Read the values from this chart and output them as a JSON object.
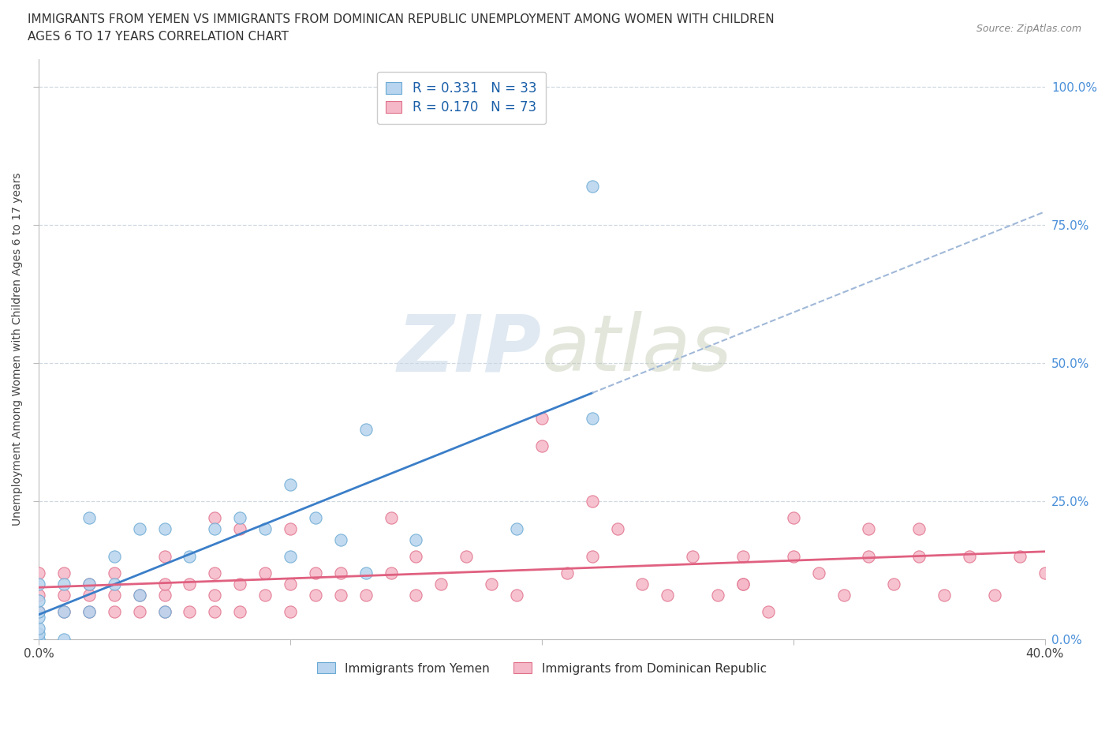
{
  "title_line1": "IMMIGRANTS FROM YEMEN VS IMMIGRANTS FROM DOMINICAN REPUBLIC UNEMPLOYMENT AMONG WOMEN WITH CHILDREN",
  "title_line2": "AGES 6 TO 17 YEARS CORRELATION CHART",
  "source_text": "Source: ZipAtlas.com",
  "ylabel": "Unemployment Among Women with Children Ages 6 to 17 years",
  "xlim": [
    0.0,
    0.4
  ],
  "ylim": [
    0.0,
    1.05
  ],
  "r_yemen": 0.331,
  "n_yemen": 33,
  "r_dr": 0.17,
  "n_dr": 73,
  "color_yemen_fill": "#b8d4ee",
  "color_yemen_edge": "#6aaad4",
  "color_dr_fill": "#f5b8c8",
  "color_dr_edge": "#e0708a",
  "trendline_color_yemen": "#3a7ec8",
  "trendline_color_dr": "#e06080",
  "trendline_dashed_color": "#a0b8d8",
  "watermark_color": "#d0dde8",
  "legend_label_yemen": "Immigrants from Yemen",
  "legend_label_dr": "Immigrants from Dominican Republic",
  "yemen_x": [
    0.0,
    0.0,
    0.0,
    0.0,
    0.0,
    0.0,
    0.0,
    0.01,
    0.01,
    0.01,
    0.02,
    0.02,
    0.02,
    0.03,
    0.03,
    0.04,
    0.04,
    0.05,
    0.05,
    0.06,
    0.07,
    0.08,
    0.09,
    0.1,
    0.1,
    0.11,
    0.12,
    0.13,
    0.13,
    0.15,
    0.19,
    0.22,
    0.22
  ],
  "yemen_y": [
    0.0,
    0.01,
    0.02,
    0.04,
    0.05,
    0.07,
    0.1,
    0.0,
    0.05,
    0.1,
    0.05,
    0.1,
    0.22,
    0.1,
    0.15,
    0.08,
    0.2,
    0.05,
    0.2,
    0.15,
    0.2,
    0.22,
    0.2,
    0.15,
    0.28,
    0.22,
    0.18,
    0.38,
    0.12,
    0.18,
    0.2,
    0.82,
    0.4
  ],
  "dr_x": [
    0.0,
    0.0,
    0.0,
    0.01,
    0.01,
    0.01,
    0.02,
    0.02,
    0.02,
    0.03,
    0.03,
    0.03,
    0.04,
    0.04,
    0.05,
    0.05,
    0.05,
    0.06,
    0.06,
    0.07,
    0.07,
    0.07,
    0.08,
    0.08,
    0.09,
    0.09,
    0.1,
    0.1,
    0.11,
    0.11,
    0.12,
    0.12,
    0.13,
    0.14,
    0.15,
    0.15,
    0.16,
    0.17,
    0.18,
    0.19,
    0.2,
    0.21,
    0.22,
    0.23,
    0.24,
    0.25,
    0.26,
    0.27,
    0.28,
    0.28,
    0.29,
    0.3,
    0.31,
    0.32,
    0.33,
    0.34,
    0.35,
    0.35,
    0.36,
    0.37,
    0.38,
    0.39,
    0.4,
    0.05,
    0.07,
    0.08,
    0.1,
    0.14,
    0.2,
    0.22,
    0.28,
    0.3,
    0.33
  ],
  "dr_y": [
    0.05,
    0.08,
    0.12,
    0.05,
    0.08,
    0.12,
    0.05,
    0.08,
    0.1,
    0.05,
    0.08,
    0.12,
    0.05,
    0.08,
    0.05,
    0.08,
    0.1,
    0.05,
    0.1,
    0.05,
    0.08,
    0.12,
    0.05,
    0.1,
    0.08,
    0.12,
    0.05,
    0.1,
    0.08,
    0.12,
    0.08,
    0.12,
    0.08,
    0.12,
    0.08,
    0.15,
    0.1,
    0.15,
    0.1,
    0.08,
    0.4,
    0.12,
    0.15,
    0.2,
    0.1,
    0.08,
    0.15,
    0.08,
    0.1,
    0.15,
    0.05,
    0.15,
    0.12,
    0.08,
    0.15,
    0.1,
    0.15,
    0.2,
    0.08,
    0.15,
    0.08,
    0.15,
    0.12,
    0.15,
    0.22,
    0.2,
    0.2,
    0.22,
    0.35,
    0.25,
    0.1,
    0.22,
    0.2
  ]
}
